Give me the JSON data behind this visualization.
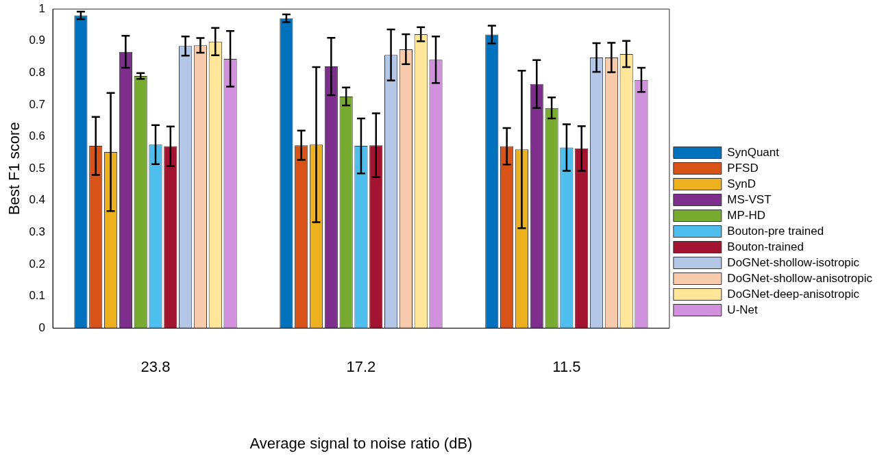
{
  "chart_data": {
    "type": "bar",
    "xlabel": "Average signal to noise ratio (dB)",
    "ylabel": "Best F1 score",
    "categories": [
      "23.8",
      "17.2",
      "11.5"
    ],
    "ylim": [
      0,
      1
    ],
    "yticks": [
      0,
      0.1,
      0.2,
      0.3,
      0.4,
      0.5,
      0.6,
      0.7,
      0.8,
      0.9,
      1
    ],
    "grid": false,
    "legend": "right",
    "series": [
      {
        "name": "SynQuant",
        "color": "#0072bd",
        "values": [
          0.98,
          0.971,
          0.92
        ],
        "errors": [
          0.012,
          0.012,
          0.028
        ]
      },
      {
        "name": "PFSD",
        "color": "#d95319",
        "values": [
          0.571,
          0.573,
          0.57
        ],
        "errors": [
          0.091,
          0.046,
          0.057
        ]
      },
      {
        "name": "SynD",
        "color": "#edb120",
        "values": [
          0.552,
          0.575,
          0.56
        ],
        "errors": [
          0.185,
          0.243,
          0.247
        ]
      },
      {
        "name": "MS-VST",
        "color": "#7e2f8e",
        "values": [
          0.866,
          0.82,
          0.765
        ],
        "errors": [
          0.05,
          0.09,
          0.075
        ]
      },
      {
        "name": "MP-HD",
        "color": "#77ac30",
        "values": [
          0.79,
          0.726,
          0.69
        ],
        "errors": [
          0.009,
          0.028,
          0.033
        ]
      },
      {
        "name": "Bouton-pre trained",
        "color": "#4dbeee",
        "values": [
          0.575,
          0.571,
          0.566
        ],
        "errors": [
          0.061,
          0.086,
          0.073
        ]
      },
      {
        "name": "Bouton-trained",
        "color": "#a2142f",
        "values": [
          0.57,
          0.573,
          0.563
        ],
        "errors": [
          0.062,
          0.1,
          0.07
        ]
      },
      {
        "name": "DoGNet-shollow-isotropic",
        "color": "#b4c7e7",
        "values": [
          0.884,
          0.856,
          0.848
        ],
        "errors": [
          0.03,
          0.08,
          0.045
        ]
      },
      {
        "name": "DoGNet-shollow-anisotropic",
        "color": "#f8cbad",
        "values": [
          0.886,
          0.874,
          0.848
        ],
        "errors": [
          0.023,
          0.047,
          0.046
        ]
      },
      {
        "name": "DoGNet-deep-anisotropic",
        "color": "#ffe699",
        "values": [
          0.898,
          0.921,
          0.859
        ],
        "errors": [
          0.043,
          0.022,
          0.041
        ]
      },
      {
        "name": "U-Net",
        "color": "#d291dc",
        "values": [
          0.844,
          0.841,
          0.778
        ],
        "errors": [
          0.087,
          0.073,
          0.038
        ]
      }
    ]
  }
}
